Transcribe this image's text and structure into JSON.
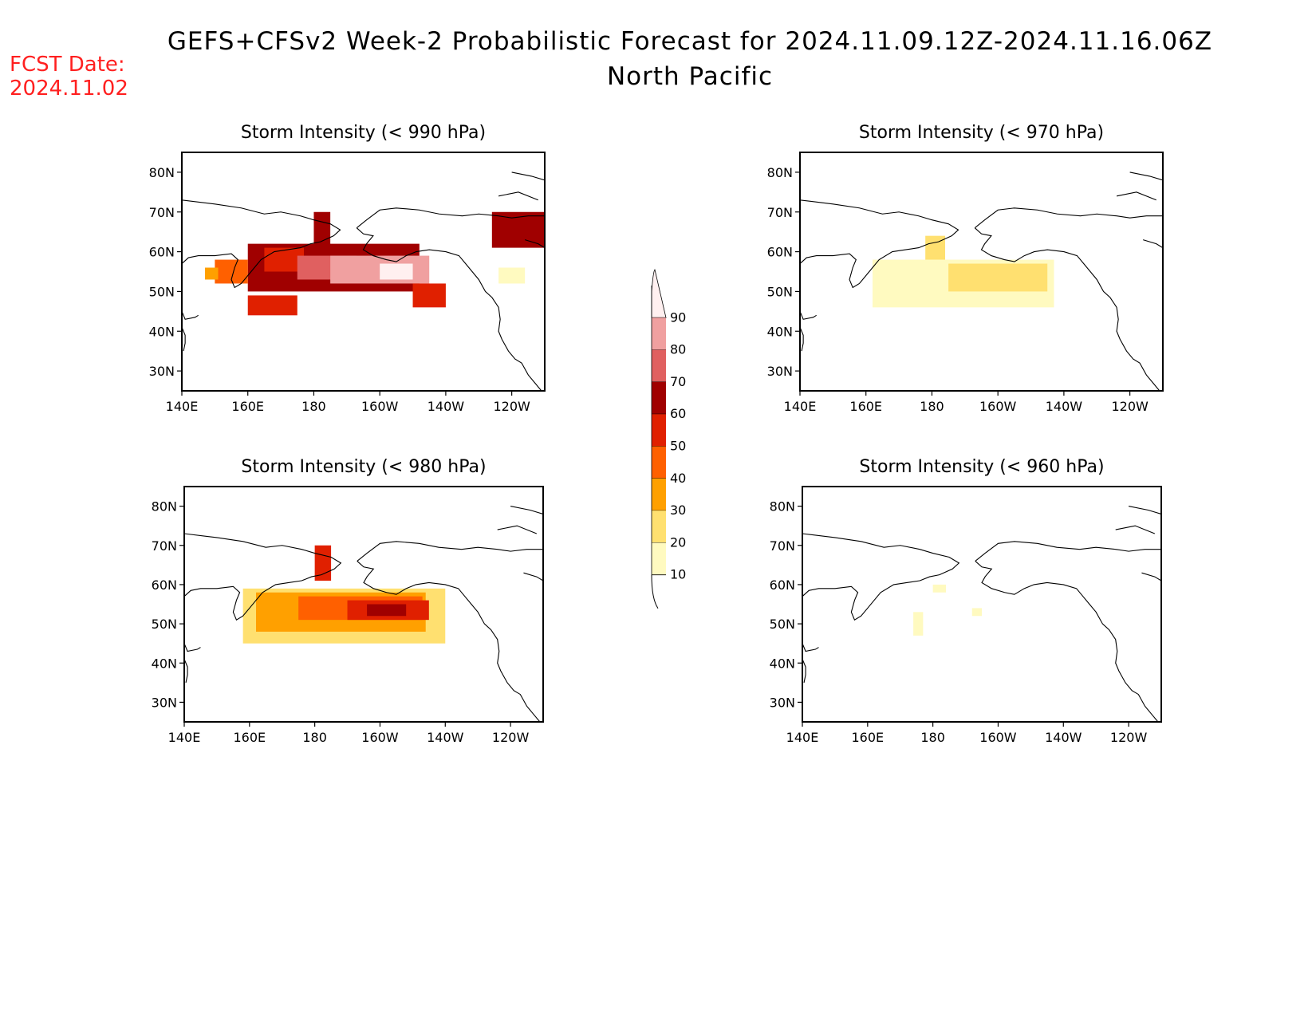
{
  "title_line1": "GEFS+CFSv2 Week-2 Probabilistic Forecast for 2024.11.09.12Z-2024.11.16.06Z",
  "title_line2": "North Pacific",
  "fcst_label": "FCST Date:",
  "fcst_date": "2024.11.02",
  "lat_labels": [
    "80N",
    "70N",
    "60N",
    "50N",
    "40N",
    "30N"
  ],
  "lon_labels": [
    "140E",
    "160E",
    "180",
    "160W",
    "140W",
    "120W"
  ],
  "colorbar": {
    "levels": [
      "90",
      "80",
      "70",
      "60",
      "50",
      "40",
      "30",
      "20",
      "10"
    ],
    "colors": [
      "#fff0f0",
      "#f0a0a0",
      "#e06060",
      "#a00000",
      "#e02000",
      "#ff6000",
      "#ffa000",
      "#ffe070",
      "#fffac0"
    ]
  },
  "panels": [
    {
      "id": "p990",
      "title": "Storm Intensity (< 990 hPa)",
      "cells": [
        {
          "lon": 160,
          "lat": 50,
          "w": 52,
          "h": 12,
          "c": "#a00000"
        },
        {
          "lon": 165,
          "lat": 55,
          "w": 12,
          "h": 6,
          "c": "#e02000"
        },
        {
          "lon": 175,
          "lat": 53,
          "w": 18,
          "h": 6,
          "c": "#e06060"
        },
        {
          "lon": 185,
          "lat": 52,
          "w": 30,
          "h": 7,
          "c": "#f0a0a0"
        },
        {
          "lon": 200,
          "lat": 53,
          "w": 10,
          "h": 4,
          "c": "#fff0f0"
        },
        {
          "lon": 180,
          "lat": 61,
          "w": 5,
          "h": 9,
          "c": "#a00000"
        },
        {
          "lon": 150,
          "lat": 52,
          "w": 10,
          "h": 6,
          "c": "#ff6000"
        },
        {
          "lon": 147,
          "lat": 53,
          "w": 4,
          "h": 3,
          "c": "#ffa000"
        },
        {
          "lon": 210,
          "lat": 46,
          "w": 10,
          "h": 6,
          "c": "#e02000"
        },
        {
          "lon": 160,
          "lat": 44,
          "w": 15,
          "h": 5,
          "c": "#e02000"
        },
        {
          "lon": 234,
          "lat": 61,
          "w": 16,
          "h": 9,
          "c": "#a00000"
        },
        {
          "lon": 236,
          "lat": 52,
          "w": 8,
          "h": 4,
          "c": "#fffac0"
        }
      ]
    },
    {
      "id": "p970",
      "title": "Storm Intensity (< 970 hPa)",
      "cells": [
        {
          "lon": 162,
          "lat": 46,
          "w": 55,
          "h": 12,
          "c": "#fffac0"
        },
        {
          "lon": 185,
          "lat": 50,
          "w": 30,
          "h": 7,
          "c": "#ffe070"
        },
        {
          "lon": 178,
          "lat": 58,
          "w": 6,
          "h": 6,
          "c": "#ffe070"
        }
      ]
    },
    {
      "id": "p980",
      "title": "Storm Intensity (< 980 hPa)",
      "cells": [
        {
          "lon": 158,
          "lat": 45,
          "w": 62,
          "h": 14,
          "c": "#ffe070"
        },
        {
          "lon": 162,
          "lat": 48,
          "w": 52,
          "h": 10,
          "c": "#ffa000"
        },
        {
          "lon": 175,
          "lat": 51,
          "w": 38,
          "h": 6,
          "c": "#ff6000"
        },
        {
          "lon": 190,
          "lat": 51,
          "w": 25,
          "h": 5,
          "c": "#e02000"
        },
        {
          "lon": 196,
          "lat": 52,
          "w": 12,
          "h": 3,
          "c": "#a00000"
        },
        {
          "lon": 180,
          "lat": 61,
          "w": 5,
          "h": 9,
          "c": "#e02000"
        }
      ]
    },
    {
      "id": "p960",
      "title": "Storm Intensity (< 960 hPa)",
      "cells": [
        {
          "lon": 174,
          "lat": 47,
          "w": 3,
          "h": 6,
          "c": "#fffac0"
        },
        {
          "lon": 180,
          "lat": 58,
          "w": 4,
          "h": 2,
          "c": "#fffac0"
        },
        {
          "lon": 192,
          "lat": 52,
          "w": 3,
          "h": 2,
          "c": "#fffac0"
        }
      ]
    }
  ]
}
